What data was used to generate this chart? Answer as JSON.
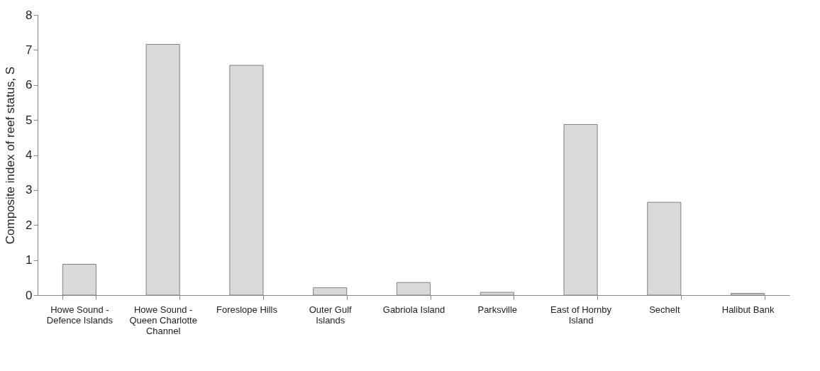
{
  "chart_data": {
    "type": "bar",
    "ylabel": "Composite index of reef status, S",
    "categories": [
      "Howe Sound - Defence Islands",
      "Howe Sound - Queen Charlotte Channel",
      "Foreslope Hills",
      "Outer Gulf Islands",
      "Gabriola Island",
      "Parksville",
      "East of Hornby Island",
      "Sechelt",
      "Halibut Bank"
    ],
    "values": [
      0.88,
      7.16,
      6.56,
      0.21,
      0.36,
      0.08,
      4.87,
      2.65,
      0.05
    ],
    "color": "#d9d9d9",
    "ylim": [
      0,
      8
    ],
    "yticks": [
      0,
      1,
      2,
      3,
      4,
      5,
      6,
      7,
      8
    ],
    "grid": false
  }
}
